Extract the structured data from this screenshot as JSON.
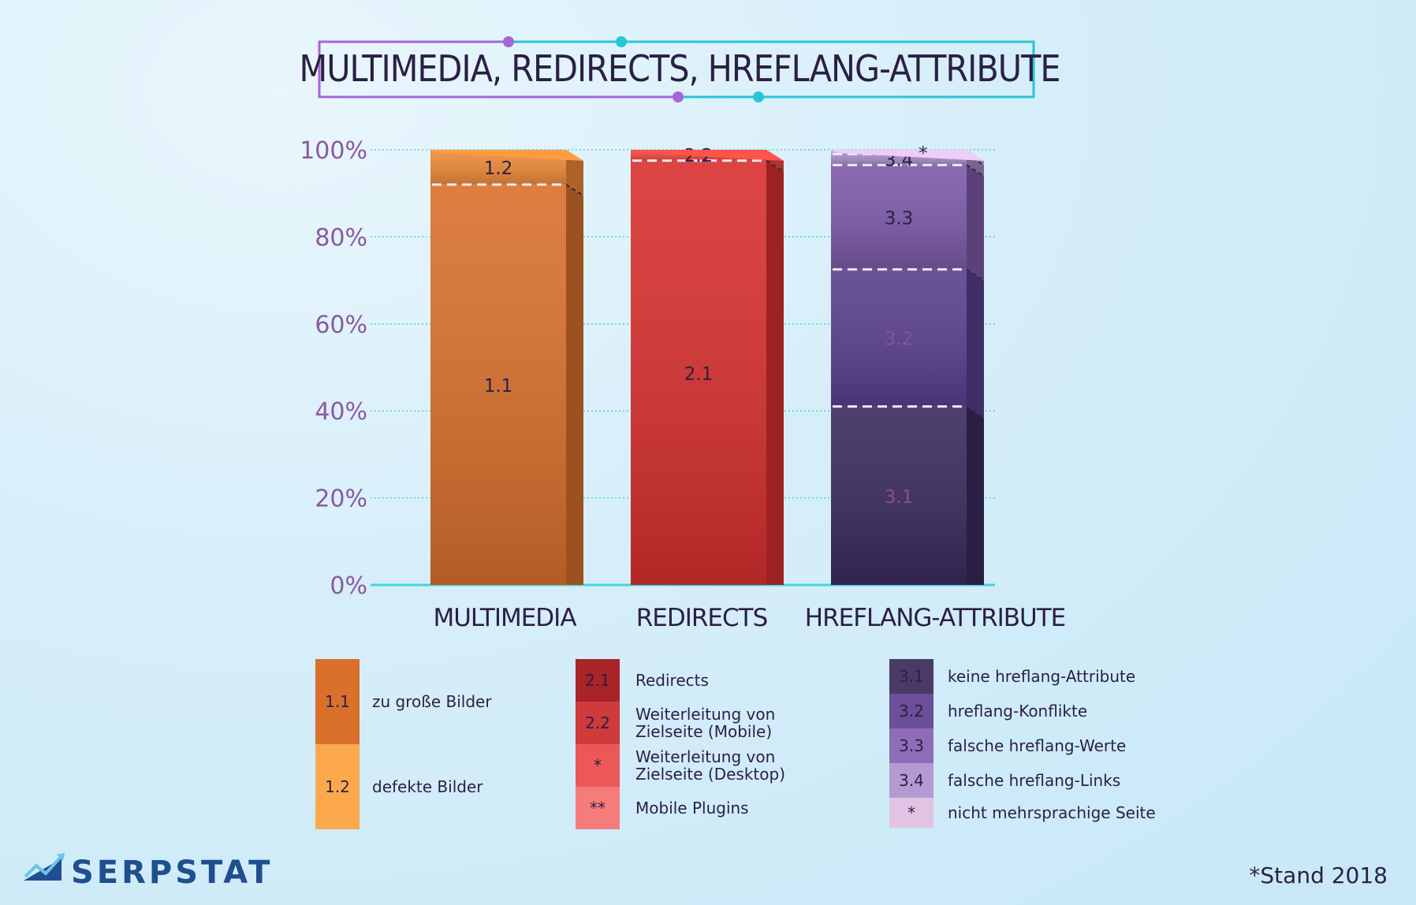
{
  "chart_data": {
    "type": "bar",
    "stacked": true,
    "title": "MULTIMEDIA, REDIRECTS, HREFLANG-ATTRIBUTE",
    "categories": [
      "MULTIMEDIA",
      "REDIRECTS",
      "HREFLANG-ATTRIBUTE"
    ],
    "y_ticks": [
      "0%",
      "20%",
      "40%",
      "60%",
      "80%",
      "100%"
    ],
    "ylim": [
      0,
      100
    ],
    "grid": true,
    "bars": [
      {
        "category": "MULTIMEDIA",
        "segments": [
          {
            "code": "1.1",
            "value": 92,
            "color": "#d9702c"
          },
          {
            "code": "1.2",
            "value": 8,
            "color": "#ee8a3a"
          }
        ]
      },
      {
        "category": "REDIRECTS",
        "segments": [
          {
            "code": "2.1",
            "value": 97.5,
            "color": "#d8302e"
          },
          {
            "code": "2.2",
            "value": 2.5,
            "color": "#ee4a43"
          }
        ]
      },
      {
        "category": "HREFLANG-ATTRIBUTE",
        "segments": [
          {
            "code": "3.1",
            "value": 41,
            "color": "#3a2a5e"
          },
          {
            "code": "3.2",
            "value": 31.5,
            "color": "#5a3f8e"
          },
          {
            "code": "3.3",
            "value": 24,
            "color": "#7d5aaa"
          },
          {
            "code": "3.4",
            "value": 2.5,
            "color": "#a58ac8"
          },
          {
            "code": "*",
            "value": 1,
            "color": "#d6b6dd"
          }
        ]
      }
    ],
    "legend": [
      {
        "group": "MULTIMEDIA",
        "items": [
          {
            "code": "1.1",
            "label": "zu große Bilder",
            "color": "#d9702c"
          },
          {
            "code": "1.2",
            "label": "defekte Bilder",
            "color": "#fca94e"
          }
        ]
      },
      {
        "group": "REDIRECTS",
        "items": [
          {
            "code": "2.1",
            "label": "Redirects",
            "color": "#a82428"
          },
          {
            "code": "2.2",
            "label": "Weiterleitung von Zielseite (Mobile)",
            "color": "#cf3a3a"
          },
          {
            "code": "*",
            "label": "Weiterleitung von Zielseite (Desktop)",
            "color": "#ec5858"
          },
          {
            "code": "**",
            "label": "Mobile Plugins",
            "color": "#f57c7a"
          }
        ]
      },
      {
        "group": "HREFLANG-ATTRIBUTE",
        "items": [
          {
            "code": "3.1",
            "label": "keine hreflang-Attribute",
            "color": "#4a3a66"
          },
          {
            "code": "3.2",
            "label": "hreflang-Konflikte",
            "color": "#6b4f98"
          },
          {
            "code": "3.3",
            "label": "falsche hreflang-Werte",
            "color": "#8e6cb8"
          },
          {
            "code": "3.4",
            "label": "falsche hreflang-Links",
            "color": "#b39bd2"
          },
          {
            "code": "*",
            "label": "nicht mehrsprachige Seite",
            "color": "#e2c3e4"
          }
        ]
      }
    ]
  },
  "branding": {
    "logo_text": "SERPSTAT",
    "logo_icon": "chart-arrow-icon"
  },
  "footnote": "*Stand 2018"
}
